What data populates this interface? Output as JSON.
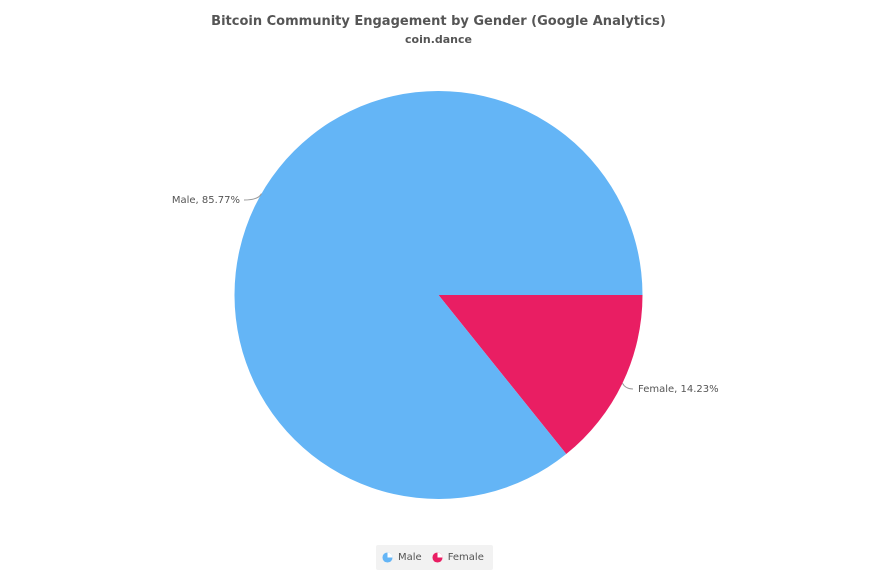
{
  "chart_data": {
    "type": "pie",
    "title": "Bitcoin Community Engagement by Gender (Google Analytics)",
    "subtitle": "coin.dance",
    "slices": [
      {
        "label": "Male",
        "value": 85.77,
        "display": "Male, 85.77%",
        "color": "#64b5f6"
      },
      {
        "label": "Female",
        "value": 14.23,
        "display": "Female, 14.23%",
        "color": "#e91e63"
      }
    ],
    "legend": {
      "position": "bottom-center",
      "items": [
        "Male",
        "Female"
      ]
    }
  }
}
